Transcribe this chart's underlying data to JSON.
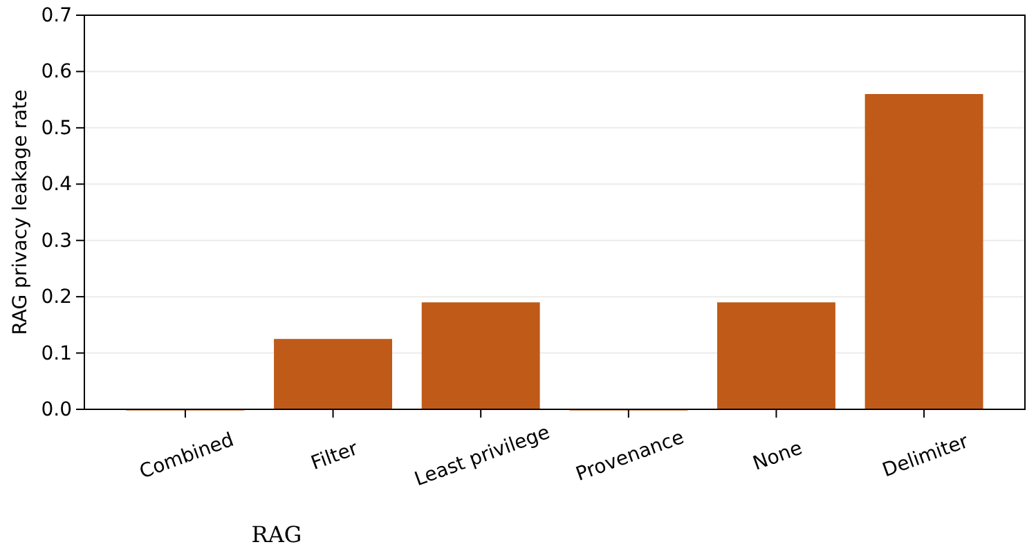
{
  "chart_data": {
    "type": "bar",
    "ylabel": "RAG privacy leakage rate",
    "categories": [
      "Combined",
      "Filter",
      "Least privilege",
      "Provenance",
      "None",
      "Delimiter"
    ],
    "values": [
      0,
      0.125,
      0.19,
      0,
      0.19,
      0.56
    ],
    "color": "#c05a18",
    "ylim": [
      0,
      0.7
    ],
    "yticks": [
      {
        "value": 0,
        "label": "0.0"
      },
      {
        "value": 0.1,
        "label": "0.1"
      },
      {
        "value": 0.2,
        "label": "0.2"
      },
      {
        "value": 0.3,
        "label": "0.3"
      },
      {
        "value": 0.4,
        "label": "0.4"
      },
      {
        "value": 0.5,
        "label": "0.5"
      },
      {
        "value": 0.6,
        "label": "0.6"
      },
      {
        "value": 0.7,
        "label": "0.7"
      }
    ],
    "grid": "y",
    "annotations": [
      "RAG"
    ]
  }
}
